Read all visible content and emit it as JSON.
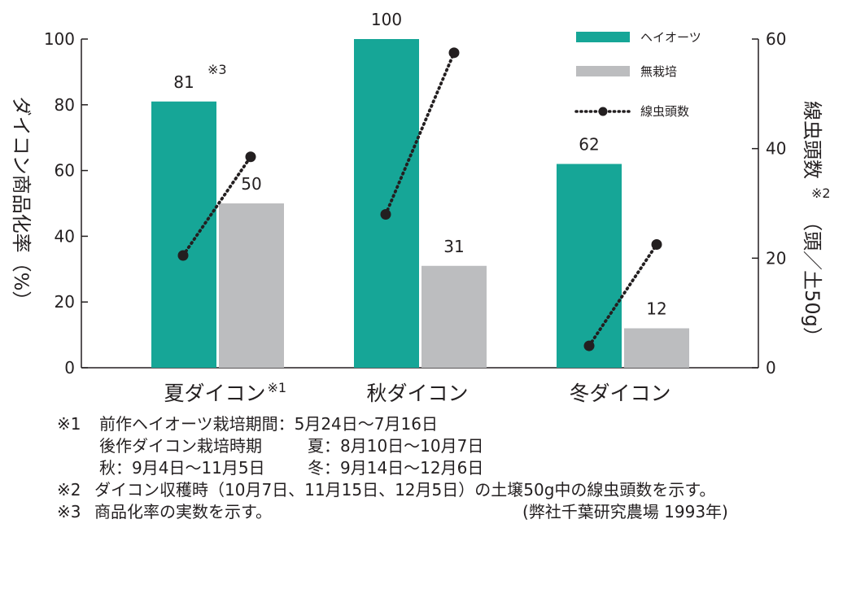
{
  "chart_data": {
    "type": "bar",
    "categories": [
      "夏ダイコン",
      "秋ダイコン",
      "冬ダイコン"
    ],
    "category_markers": [
      "※1",
      "",
      ""
    ],
    "series": [
      {
        "name": "ヘイオーツ",
        "kind": "bar",
        "axis": "left",
        "color": "#16a697",
        "values": [
          81,
          100,
          62
        ],
        "value_labels": [
          "81",
          "100",
          "62"
        ]
      },
      {
        "name": "無栽培",
        "kind": "bar",
        "axis": "left",
        "color": "#bcbdbf",
        "values": [
          50,
          31,
          12
        ],
        "value_labels": [
          "50",
          "31",
          "12"
        ]
      },
      {
        "name": "線虫頭数",
        "kind": "line",
        "axis": "right",
        "color": "#231f20",
        "segments": [
          {
            "category": "夏ダイコン",
            "start": 20.5,
            "end": 38.5
          },
          {
            "category": "秋ダイコン",
            "start": 28,
            "end": 57.5
          },
          {
            "category": "冬ダイコン",
            "start": 4,
            "end": 22.5
          }
        ]
      }
    ],
    "annotation": "※3",
    "ylabel": "ダイコン商品化率（%）",
    "ylim": [
      0,
      100
    ],
    "yticks": [
      "0",
      "20",
      "40",
      "60",
      "80",
      "100"
    ],
    "y2label": "線虫頭数",
    "y2label_mark": "※2",
    "y2label_unit": "（頭／土50g）",
    "y2lim": [
      0,
      60
    ],
    "y2ticks": [
      "0",
      "20",
      "40",
      "60"
    ],
    "legend_position": "top-right",
    "grid": false
  },
  "notes": [
    {
      "prefix": "※1",
      "parts": [
        "前作ヘイオーツ栽培期間：5月24日～7月16日"
      ]
    },
    {
      "prefix": "",
      "parts": [
        "後作ダイコン栽培時期",
        "夏：8月10日～10月7日"
      ]
    },
    {
      "prefix": "",
      "parts": [
        "秋：9月4日～11月5日",
        "冬：9月14日～12月6日"
      ]
    },
    {
      "prefix": "※2",
      "parts": [
        "ダイコン収穫時（10月7日、11月15日、12月5日）の土壌50g中の線虫頭数を示す。"
      ]
    },
    {
      "prefix": "※3",
      "parts": [
        "商品化率の実数を示す。",
        "(弊社千葉研究農場 1993年)"
      ]
    }
  ]
}
